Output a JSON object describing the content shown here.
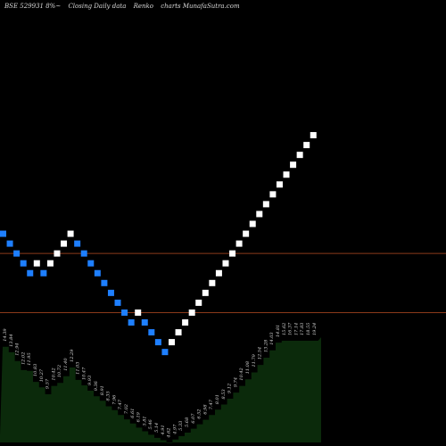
{
  "header": {
    "symbol": "BSE 529931 8%~",
    "chart_label": "Closing Daily data",
    "chart_kind": "Renko",
    "site": "charts MunafaSutra.com"
  },
  "colors": {
    "background": "#000000",
    "up_brick": "#ffffff",
    "down_brick": "#1e7fff",
    "level_line": "#8b3a1a",
    "volume_fill": "#0b2a0b",
    "label_text": "#d8d8d8"
  },
  "chart_data": {
    "type": "renko",
    "price_range": [
      5.0,
      25.0
    ],
    "levels": [
      10.5,
      13.5
    ],
    "bricks": [
      {
        "v": 14.5,
        "dir": "down"
      },
      {
        "v": 14.0,
        "dir": "down"
      },
      {
        "v": 13.5,
        "dir": "down"
      },
      {
        "v": 13.0,
        "dir": "down"
      },
      {
        "v": 12.5,
        "dir": "down"
      },
      {
        "v": 13.0,
        "dir": "up"
      },
      {
        "v": 12.5,
        "dir": "down"
      },
      {
        "v": 13.0,
        "dir": "up"
      },
      {
        "v": 13.5,
        "dir": "up"
      },
      {
        "v": 14.0,
        "dir": "up"
      },
      {
        "v": 14.5,
        "dir": "up"
      },
      {
        "v": 14.0,
        "dir": "down"
      },
      {
        "v": 13.5,
        "dir": "down"
      },
      {
        "v": 13.0,
        "dir": "down"
      },
      {
        "v": 12.5,
        "dir": "down"
      },
      {
        "v": 12.0,
        "dir": "down"
      },
      {
        "v": 11.5,
        "dir": "down"
      },
      {
        "v": 11.0,
        "dir": "down"
      },
      {
        "v": 10.5,
        "dir": "down"
      },
      {
        "v": 10.0,
        "dir": "down"
      },
      {
        "v": 10.5,
        "dir": "up"
      },
      {
        "v": 10.0,
        "dir": "down"
      },
      {
        "v": 9.5,
        "dir": "down"
      },
      {
        "v": 9.0,
        "dir": "down"
      },
      {
        "v": 8.5,
        "dir": "down"
      },
      {
        "v": 9.0,
        "dir": "up"
      },
      {
        "v": 9.5,
        "dir": "up"
      },
      {
        "v": 10.0,
        "dir": "up"
      },
      {
        "v": 10.5,
        "dir": "up"
      },
      {
        "v": 11.0,
        "dir": "up"
      },
      {
        "v": 11.5,
        "dir": "up"
      },
      {
        "v": 12.0,
        "dir": "up"
      },
      {
        "v": 12.5,
        "dir": "up"
      },
      {
        "v": 13.0,
        "dir": "up"
      },
      {
        "v": 13.5,
        "dir": "up"
      },
      {
        "v": 14.0,
        "dir": "up"
      },
      {
        "v": 14.5,
        "dir": "up"
      },
      {
        "v": 15.0,
        "dir": "up"
      },
      {
        "v": 15.5,
        "dir": "up"
      },
      {
        "v": 16.0,
        "dir": "up"
      },
      {
        "v": 16.5,
        "dir": "up"
      },
      {
        "v": 17.0,
        "dir": "up"
      },
      {
        "v": 17.5,
        "dir": "up"
      },
      {
        "v": 18.0,
        "dir": "up"
      },
      {
        "v": 18.5,
        "dir": "up"
      },
      {
        "v": 19.0,
        "dir": "up"
      },
      {
        "v": 19.5,
        "dir": "up"
      }
    ],
    "close_labels": [
      "14.39",
      "13.84",
      "12.94",
      "12.02",
      "11.95",
      "10.83",
      "10.27",
      "9.57",
      "10.42",
      "10.72",
      "11.40",
      "12.29",
      "11.03",
      "10.47",
      "9.93",
      "9.36",
      "8.91",
      "8.35",
      "7.96",
      "7.47",
      "7.02",
      "6.61",
      "6.19",
      "5.81",
      "5.46",
      "5.14",
      "4.91",
      "4.62",
      "4.97",
      "5.33",
      "5.68",
      "6.07",
      "6.52",
      "6.98",
      "7.47",
      "8.01",
      "8.53",
      "9.12",
      "9.74",
      "10.42",
      "11.08",
      "11.79",
      "12.54",
      "13.28",
      "14.03",
      "14.81",
      "15.62",
      "16.37",
      "17.14",
      "17.83",
      "18.55",
      "19.24"
    ]
  }
}
